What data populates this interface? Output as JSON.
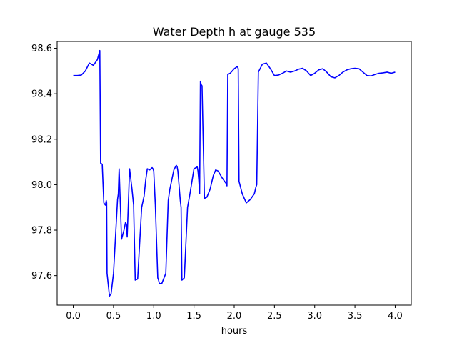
{
  "chart_data": {
    "type": "line",
    "title": "Water Depth h at gauge 535",
    "xlabel": "hours",
    "ylabel": "",
    "xlim": [
      -0.2,
      4.2
    ],
    "ylim": [
      97.47,
      98.63
    ],
    "xticks": [
      0.0,
      0.5,
      1.0,
      1.5,
      2.0,
      2.5,
      3.0,
      3.5,
      4.0
    ],
    "xtick_labels": [
      "0.0",
      "0.5",
      "1.0",
      "1.5",
      "2.0",
      "2.5",
      "3.0",
      "3.5",
      "4.0"
    ],
    "yticks": [
      97.6,
      97.8,
      98.0,
      98.2,
      98.4,
      98.6
    ],
    "ytick_labels": [
      "97.6",
      "97.8",
      "98.0",
      "98.2",
      "98.4",
      "98.6"
    ],
    "grid": false,
    "series": [
      {
        "color": "#0000ff",
        "x": [
          0.0,
          0.05,
          0.1,
          0.15,
          0.2,
          0.25,
          0.3,
          0.33,
          0.34,
          0.36,
          0.38,
          0.4,
          0.41,
          0.415,
          0.42,
          0.45,
          0.47,
          0.5,
          0.55,
          0.56,
          0.57,
          0.6,
          0.63,
          0.65,
          0.66,
          0.67,
          0.7,
          0.72,
          0.73,
          0.75,
          0.77,
          0.8,
          0.85,
          0.88,
          0.9,
          0.92,
          0.95,
          0.98,
          0.99,
          1.0,
          1.02,
          1.05,
          1.06,
          1.07,
          1.1,
          1.15,
          1.18,
          1.2,
          1.25,
          1.28,
          1.29,
          1.3,
          1.33,
          1.34,
          1.35,
          1.38,
          1.42,
          1.45,
          1.5,
          1.54,
          1.55,
          1.56,
          1.57,
          1.58,
          1.59,
          1.6,
          1.63,
          1.66,
          1.7,
          1.74,
          1.77,
          1.8,
          1.85,
          1.9,
          1.91,
          1.92,
          1.95,
          2.0,
          2.04,
          2.05,
          2.06,
          2.1,
          2.15,
          2.2,
          2.25,
          2.27,
          2.28,
          2.3,
          2.35,
          2.4,
          2.45,
          2.5,
          2.55,
          2.6,
          2.65,
          2.7,
          2.75,
          2.8,
          2.85,
          2.9,
          2.95,
          3.0,
          3.05,
          3.1,
          3.15,
          3.2,
          3.25,
          3.3,
          3.35,
          3.4,
          3.45,
          3.5,
          3.55,
          3.6,
          3.65,
          3.7,
          3.75,
          3.8,
          3.85,
          3.9,
          3.95,
          4.0
        ],
        "y": [
          98.48,
          98.48,
          98.482,
          98.5,
          98.535,
          98.525,
          98.55,
          98.59,
          98.095,
          98.09,
          97.92,
          97.91,
          97.93,
          97.92,
          97.61,
          97.51,
          97.52,
          97.61,
          97.935,
          97.96,
          98.07,
          97.76,
          97.8,
          97.835,
          97.825,
          97.77,
          98.07,
          98.01,
          97.98,
          97.91,
          97.58,
          97.585,
          97.9,
          97.95,
          98.02,
          98.07,
          98.065,
          98.075,
          98.07,
          98.06,
          97.91,
          97.59,
          97.58,
          97.565,
          97.565,
          97.61,
          97.93,
          97.98,
          98.065,
          98.085,
          98.08,
          98.06,
          97.93,
          97.9,
          97.58,
          97.59,
          97.9,
          97.96,
          98.07,
          98.078,
          98.06,
          98.02,
          97.96,
          98.455,
          98.44,
          98.435,
          97.94,
          97.945,
          97.98,
          98.04,
          98.065,
          98.06,
          98.03,
          98.005,
          97.995,
          98.485,
          98.49,
          98.51,
          98.52,
          98.51,
          98.015,
          97.96,
          97.92,
          97.935,
          97.96,
          97.99,
          98.0,
          98.495,
          98.53,
          98.535,
          98.51,
          98.48,
          98.482,
          98.49,
          98.5,
          98.495,
          98.5,
          98.508,
          98.512,
          98.5,
          98.48,
          98.49,
          98.505,
          98.51,
          98.495,
          98.475,
          98.47,
          98.48,
          98.495,
          98.505,
          98.51,
          98.512,
          98.51,
          98.495,
          98.48,
          98.478,
          98.485,
          98.49,
          98.492,
          98.495,
          98.49,
          98.495
        ]
      }
    ]
  }
}
